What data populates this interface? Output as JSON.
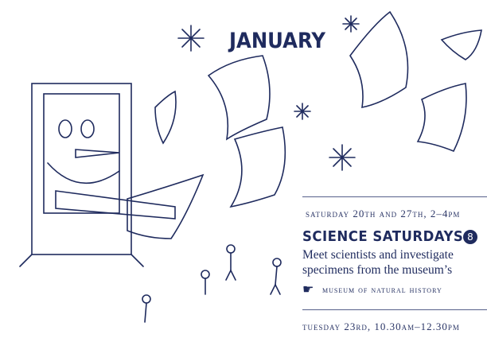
{
  "header": {
    "title": "JANUARY"
  },
  "events": [
    {
      "date": "Saturday 20th and 27th, 2–4pm",
      "title": "SCIENCE SATURDAYS",
      "badge": "8",
      "description": [
        "Meet scientists and investigate",
        "specimens from the museum’s"
      ],
      "venue": "Museum of Natural History"
    },
    {
      "date": "Tuesday 23rd, 10.30am–12.30pm"
    }
  ]
}
